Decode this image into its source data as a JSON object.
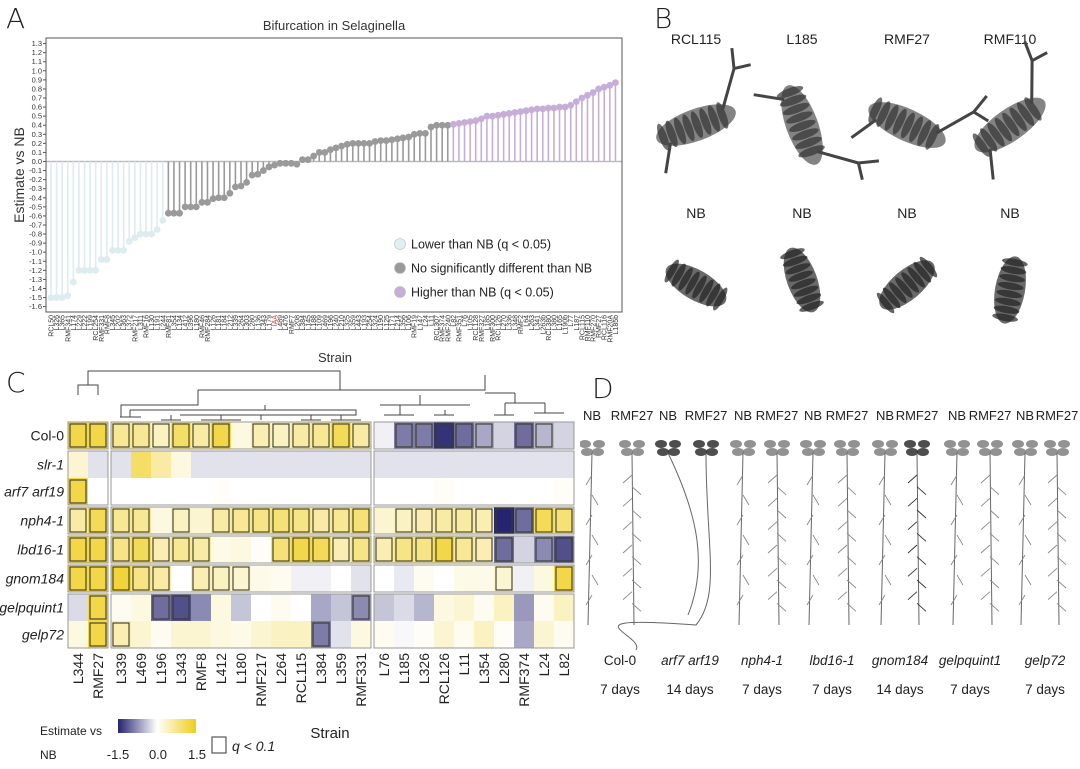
{
  "panels": {
    "a": "A",
    "b": "B",
    "c": "C",
    "d": "D"
  },
  "chart_data": [
    {
      "type": "bar",
      "style": "lollipop",
      "title": "Bifurcation in Selaginella",
      "xlabel": "Strain",
      "ylabel": "Estimate vs NB",
      "ylim": [
        -1.6,
        1.3
      ],
      "ytick_step": 0.1,
      "grid": false,
      "legend_placement": "bottom-right",
      "legend": [
        {
          "label": "Lower than NB",
          "q": "(q < 0.05)",
          "color": "#dff0f2",
          "group": "lower"
        },
        {
          "label": "No significantly different than NB",
          "q": "",
          "color": "#9a9a9a",
          "group": "ns"
        },
        {
          "label": "Higher than NB",
          "q": "(q < 0.05)",
          "color": "#c7aed8",
          "group": "higher"
        }
      ],
      "highlight_label": "IAA",
      "highlight_color": "#e03030",
      "categories": [
        "RCL50",
        "L326",
        "L365",
        "RMF341",
        "L174",
        "L229",
        "L222",
        "L199",
        "RCL254",
        "RMF331",
        "RMF8",
        "L345",
        "L202",
        "L363",
        "L372",
        "RMF217",
        "L311",
        "RMF16",
        "L130",
        "L191",
        "L244",
        "RMF81",
        "L354",
        "L134",
        "L412",
        "L396",
        "L180",
        "RMF46",
        "RMF284",
        "L126",
        "L181",
        "L184",
        "L212",
        "L339",
        "L264",
        "L303",
        "L280",
        "L136",
        "L343",
        "L179",
        "IAA",
        "L489",
        "L476",
        "RMF7",
        "L208",
        "L384",
        "L145",
        "L188",
        "L109",
        "L469",
        "L196",
        "L240",
        "L210",
        "L325",
        "L359",
        "L443",
        "L193",
        "L254",
        "L324",
        "L190",
        "L125",
        "L171",
        "L214",
        "L356",
        "L106",
        "RMF19",
        "L147",
        "L24",
        "L11",
        "RCL307",
        "RMF374",
        "RMF240",
        "L82",
        "RMF351",
        "L76",
        "L105",
        "RCL128",
        "RMF327",
        "L185",
        "RMF300",
        "RCL126",
        "L270",
        "L336",
        "L348",
        "RMF2",
        "L64",
        "L263",
        "L341",
        "L263b",
        "RCL380",
        "L380",
        "L165",
        "L190b",
        "L77",
        "L187",
        "RCL115",
        "RMF110",
        "RMF270",
        "RMF27",
        "RCL116",
        "RMF20A",
        "L185b"
      ],
      "values": [
        -1.5,
        -1.5,
        -1.5,
        -1.48,
        -1.33,
        -1.2,
        -1.2,
        -1.2,
        -1.2,
        -1.08,
        -1.08,
        -0.98,
        -0.98,
        -0.98,
        -0.88,
        -0.84,
        -0.8,
        -0.8,
        -0.8,
        -0.75,
        -0.65,
        -0.57,
        -0.57,
        -0.57,
        -0.5,
        -0.5,
        -0.5,
        -0.45,
        -0.45,
        -0.41,
        -0.4,
        -0.4,
        -0.35,
        -0.28,
        -0.27,
        -0.23,
        -0.15,
        -0.14,
        -0.1,
        -0.06,
        -0.04,
        -0.02,
        -0.02,
        -0.02,
        -0.03,
        0.02,
        0.02,
        0.06,
        0.1,
        0.1,
        0.13,
        0.15,
        0.17,
        0.19,
        0.2,
        0.2,
        0.2,
        0.2,
        0.22,
        0.23,
        0.23,
        0.24,
        0.25,
        0.26,
        0.27,
        0.3,
        0.31,
        0.31,
        0.38,
        0.4,
        0.4,
        0.4,
        0.41,
        0.42,
        0.43,
        0.44,
        0.45,
        0.47,
        0.5,
        0.5,
        0.51,
        0.52,
        0.53,
        0.54,
        0.55,
        0.56,
        0.57,
        0.58,
        0.58,
        0.59,
        0.59,
        0.6,
        0.6,
        0.62,
        0.66,
        0.7,
        0.73,
        0.76,
        0.8,
        0.82,
        0.84,
        0.87
      ],
      "group_counts": {
        "lower": 21,
        "ns": 51,
        "higher": 30
      }
    },
    {
      "type": "heatmap",
      "xlabel": "Strain",
      "colorbar_title": [
        "Estimate vs",
        "NB"
      ],
      "colorbar_ticks": [
        "-1.5",
        "0.0",
        "1.5"
      ],
      "zlim": [
        -1.5,
        1.5
      ],
      "colors": {
        "low": "#26246e",
        "mid": "#ffffff",
        "high": "#efcd1a"
      },
      "sig_legend": "q < 0.1",
      "columns": [
        "L344",
        "RMF27",
        "L339",
        "L469",
        "L196",
        "L343",
        "RMF8",
        "L412",
        "L180",
        "RMF217",
        "L264",
        "RCL115",
        "L384",
        "L359",
        "RMF331",
        "L76",
        "L185",
        "L326",
        "RCL126",
        "L11",
        "L354",
        "L280",
        "RMF374",
        "L24",
        "L82"
      ],
      "column_clusters": [
        2,
        13,
        10
      ],
      "rows": [
        {
          "name": "Col-0",
          "italic": false,
          "values": [
            1.2,
            1.2,
            0.7,
            0.7,
            0.4,
            1.0,
            0.6,
            1.2,
            0.2,
            0.5,
            0.4,
            0.6,
            0.7,
            1.1,
            0.6,
            -0.1,
            -0.9,
            -0.9,
            -1.4,
            -1.0,
            -0.6,
            -0.3,
            -1.0,
            -0.5,
            -0.3
          ],
          "sig": [
            1,
            1,
            1,
            1,
            1,
            1,
            1,
            1,
            0,
            1,
            1,
            1,
            1,
            1,
            1,
            0,
            1,
            1,
            1,
            1,
            1,
            0,
            1,
            1,
            0
          ]
        },
        {
          "name": "slr-1",
          "italic": true,
          "values": [
            0.3,
            -0.2,
            -0.2,
            1.0,
            0.6,
            0.2,
            -0.2,
            -0.2,
            -0.2,
            -0.2,
            -0.2,
            -0.2,
            -0.2,
            -0.2,
            -0.2,
            -0.2,
            -0.2,
            -0.2,
            -0.2,
            -0.2,
            -0.2,
            -0.2,
            -0.2,
            -0.2,
            -0.2
          ],
          "sig": [
            0,
            0,
            0,
            0,
            0,
            0,
            0,
            0,
            0,
            0,
            0,
            0,
            0,
            0,
            0,
            0,
            0,
            0,
            0,
            0,
            0,
            0,
            0,
            0,
            0
          ]
        },
        {
          "name": "arf7 arf19",
          "italic": true,
          "values": [
            1.2,
            0,
            0,
            0,
            0,
            0,
            0,
            0.03,
            0,
            0,
            0,
            0,
            0,
            0,
            0,
            0,
            0,
            0,
            0.05,
            0,
            0,
            0,
            0,
            0,
            0.05
          ],
          "sig": [
            1,
            0,
            0,
            0,
            0,
            0,
            0,
            0,
            0,
            0,
            0,
            0,
            0,
            0,
            0,
            0,
            0,
            0,
            0,
            0,
            0,
            0,
            0,
            0,
            0
          ]
        },
        {
          "name": "nph4-1",
          "italic": true,
          "values": [
            0.6,
            1.1,
            0.7,
            0.7,
            0.2,
            0.4,
            0.3,
            0.6,
            0.7,
            0.8,
            0.9,
            0.8,
            0.6,
            0.7,
            0.9,
            0.3,
            0.4,
            0.5,
            0.6,
            0.6,
            0.5,
            -1.5,
            -1.0,
            1.1,
            0.9
          ],
          "sig": [
            1,
            1,
            1,
            1,
            0,
            1,
            0,
            1,
            1,
            1,
            1,
            1,
            1,
            1,
            1,
            0,
            1,
            1,
            1,
            1,
            1,
            1,
            1,
            1,
            1
          ]
        },
        {
          "name": "lbd16-1",
          "italic": true,
          "values": [
            1.2,
            1.2,
            0.8,
            1.1,
            0.5,
            0.7,
            0.6,
            0.15,
            0.2,
            0.05,
            0.9,
            1.2,
            1.1,
            0.5,
            0.8,
            0.5,
            0.8,
            0.8,
            1.2,
            0.7,
            0.5,
            -1.0,
            -0.3,
            -0.8,
            -1.2
          ],
          "sig": [
            1,
            1,
            1,
            1,
            1,
            1,
            1,
            0,
            0,
            0,
            1,
            1,
            1,
            1,
            1,
            1,
            1,
            1,
            1,
            1,
            1,
            1,
            0,
            1,
            1
          ]
        },
        {
          "name": "gnom184",
          "italic": true,
          "values": [
            1.2,
            1.2,
            1.3,
            0.8,
            0.6,
            0.0,
            0.5,
            0.4,
            0.3,
            0.15,
            0.1,
            -0.1,
            -0.1,
            0.0,
            -0.2,
            0.0,
            -0.15,
            0.1,
            0.0,
            0.15,
            0.15,
            0.3,
            -0.1,
            0.2,
            1.2
          ],
          "sig": [
            1,
            1,
            1,
            1,
            1,
            0,
            1,
            1,
            1,
            0,
            0,
            0,
            0,
            0,
            0,
            0,
            0,
            0,
            0,
            0,
            0,
            1,
            0,
            0,
            1
          ]
        },
        {
          "name": "gelpquint1",
          "italic": true,
          "values": [
            -0.25,
            1.2,
            0.1,
            0.2,
            -1.0,
            -1.2,
            -0.8,
            0.2,
            -0.4,
            0.0,
            0.1,
            0.0,
            -0.6,
            -0.4,
            -0.8,
            -0.4,
            -0.25,
            -0.5,
            0.2,
            0.3,
            0.1,
            0.4,
            -0.7,
            0.1,
            0.4
          ],
          "sig": [
            0,
            1,
            0,
            0,
            1,
            1,
            0,
            0,
            0,
            0,
            0,
            0,
            0,
            0,
            1,
            0,
            0,
            0,
            0,
            0,
            0,
            0,
            0,
            0,
            0
          ]
        },
        {
          "name": "gelp72",
          "italic": true,
          "values": [
            0.2,
            1.2,
            0.5,
            0.3,
            0.1,
            0.3,
            0.3,
            0.2,
            0.15,
            0.3,
            0.4,
            0.4,
            -0.9,
            -0.2,
            0.2,
            0.1,
            -0.05,
            0.05,
            0.3,
            0.1,
            0.4,
            0.05,
            -0.6,
            0.3,
            0.1
          ],
          "sig": [
            0,
            1,
            1,
            0,
            0,
            0,
            0,
            0,
            0,
            0,
            0,
            0,
            1,
            0,
            0,
            0,
            0,
            0,
            0,
            0,
            0,
            0,
            0,
            0,
            0
          ]
        }
      ]
    }
  ],
  "panel_b": {
    "top": [
      "RCL115",
      "L185",
      "RMF27",
      "RMF110"
    ],
    "bottom": [
      "NB",
      "NB",
      "NB",
      "NB"
    ]
  },
  "panel_d": {
    "pairs": [
      {
        "genotype": "Col-0",
        "italic": false,
        "age": "7 days",
        "left": "NB",
        "right": "RMF27"
      },
      {
        "genotype": "arf7 arf19",
        "italic": true,
        "age": "14 days",
        "left": "NB",
        "right": "RMF27"
      },
      {
        "genotype": "nph4-1",
        "italic": true,
        "age": "7 days",
        "left": "NB",
        "right": "RMF27"
      },
      {
        "genotype": "lbd16-1",
        "italic": true,
        "age": "7 days",
        "left": "NB",
        "right": "RMF27"
      },
      {
        "genotype": "gnom184",
        "italic": true,
        "age": "14 days",
        "left": "NB",
        "right": "RMF27"
      },
      {
        "genotype": "gelpquint1",
        "italic": true,
        "age": "7 days",
        "left": "NB",
        "right": "RMF27"
      },
      {
        "genotype": "gelp72",
        "italic": true,
        "age": "7 days",
        "left": "NB",
        "right": "RMF27"
      }
    ]
  }
}
